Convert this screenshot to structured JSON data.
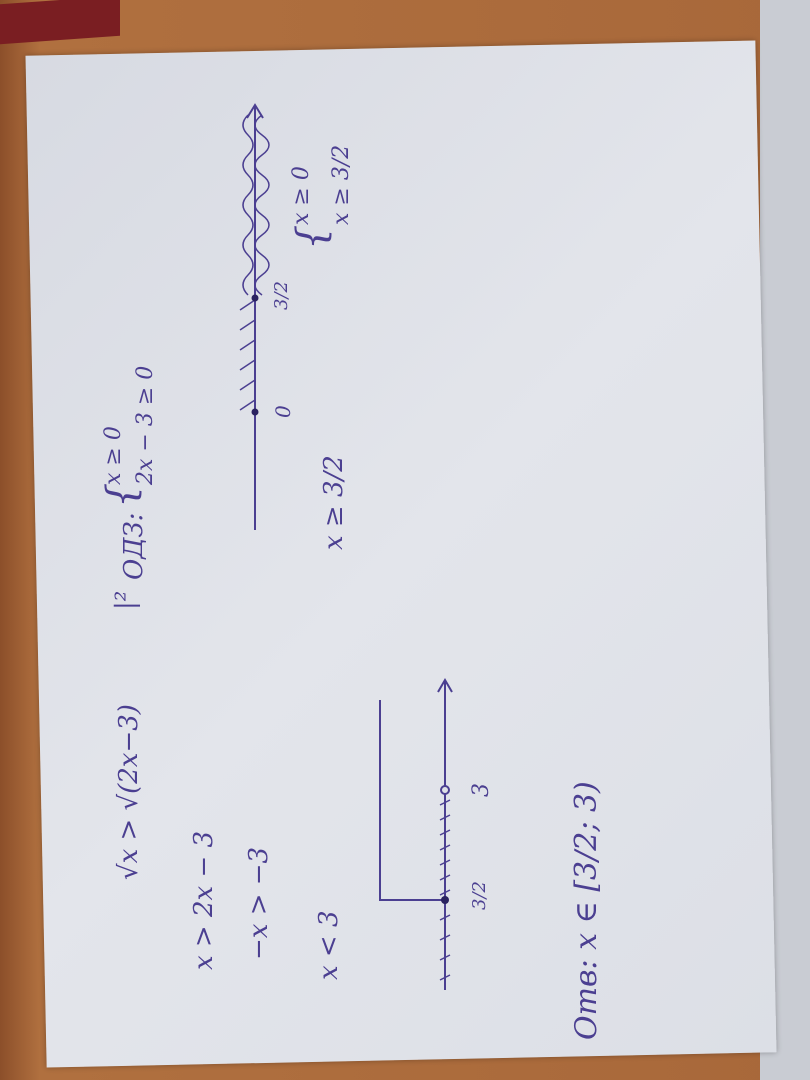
{
  "colors": {
    "ink": "#4b3f91",
    "paper": "#dfe1e7",
    "wood": "#a9673a"
  },
  "solution": {
    "line1": "√x > √(2x−3)",
    "square_mark": "|²",
    "line2": "x > 2x − 3",
    "line3": "−x > −3",
    "line4": "x < 3",
    "answer": "Отв: x ∈ [3/2; 3)",
    "numberline1": {
      "label_a": "3/2",
      "label_b": "3"
    }
  },
  "domain": {
    "label": "ОДЗ:",
    "sys1": [
      "x ≥ 0",
      "2x − 3 ≥ 0"
    ],
    "sys2": [
      "x ≥ 0",
      "x ≥ 3/2"
    ],
    "result": "x ≥ 3/2",
    "numberline2": {
      "label_a": "0",
      "label_b": "3/2"
    }
  }
}
